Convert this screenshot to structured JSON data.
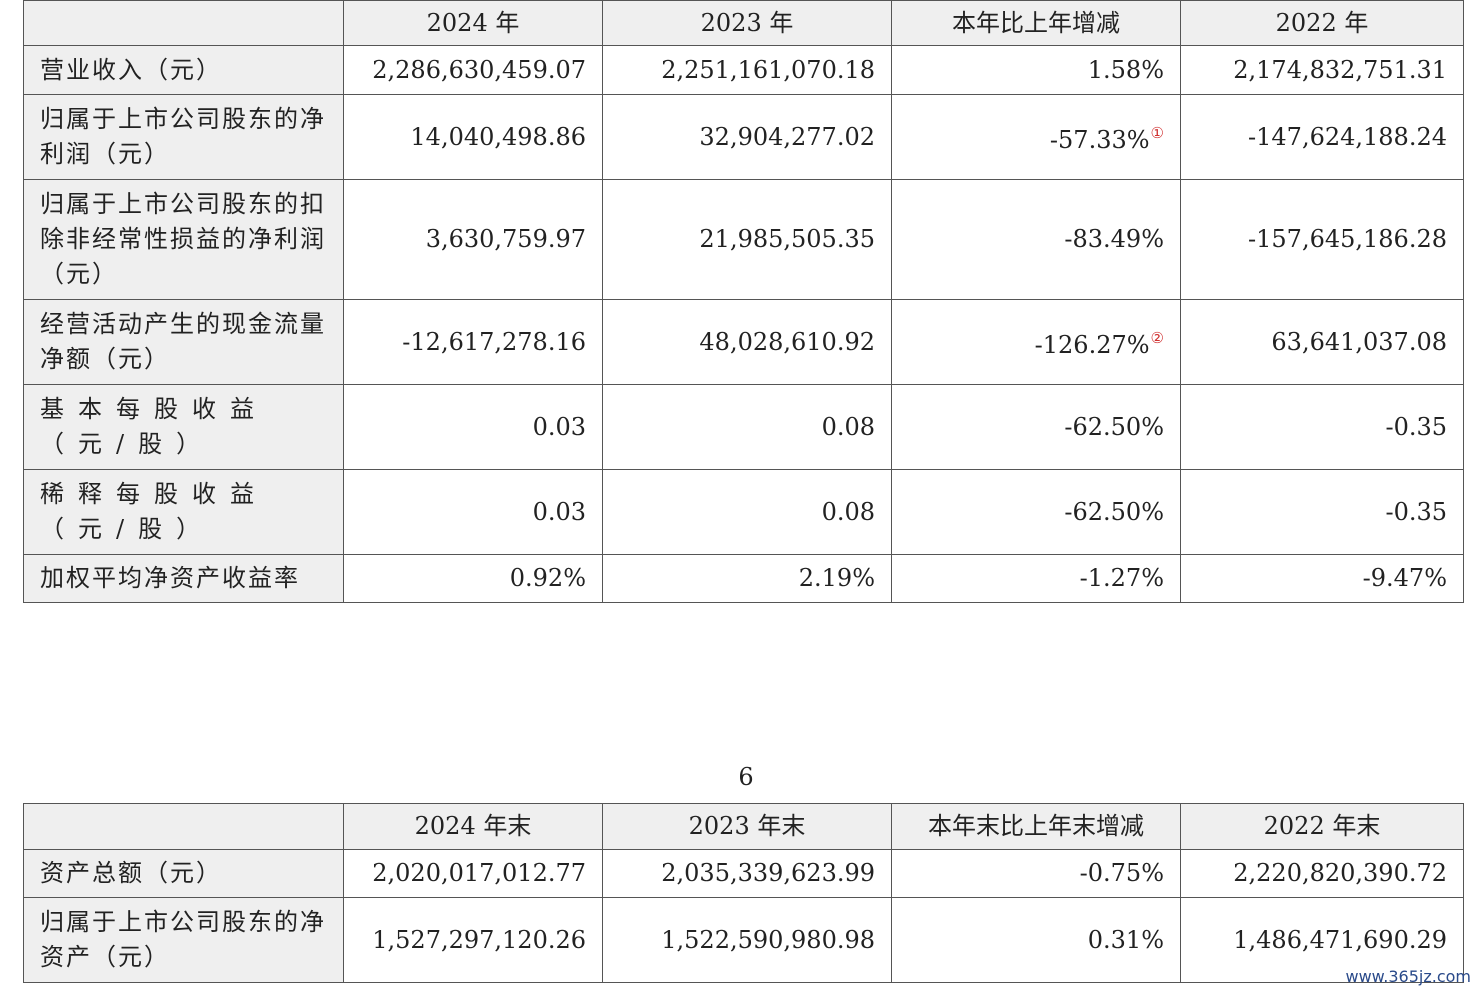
{
  "table1": {
    "headers": [
      "",
      "2024 年",
      "2023 年",
      "本年比上年增减",
      "2022 年"
    ],
    "rows": [
      {
        "label": "营业收入（元）",
        "v2024": "2,286,630,459.07",
        "v2023": "2,251,161,070.18",
        "change": "1.58%",
        "note": "",
        "v2022": "2,174,832,751.31"
      },
      {
        "label": "归属于上市公司股东的净利润（元）",
        "v2024": "14,040,498.86",
        "v2023": "32,904,277.02",
        "change": "-57.33%",
        "note": "①",
        "v2022": "-147,624,188.24"
      },
      {
        "label": "归属于上市公司股东的扣除非经常性损益的净利润（元）",
        "v2024": "3,630,759.97",
        "v2023": "21,985,505.35",
        "change": "-83.49%",
        "note": "",
        "v2022": "-157,645,186.28"
      },
      {
        "label": "经营活动产生的现金流量净额（元）",
        "v2024": "-12,617,278.16",
        "v2023": "48,028,610.92",
        "change": "-126.27%",
        "note": "②",
        "v2022": "63,641,037.08"
      },
      {
        "label": "基本每股收益（元/股）",
        "v2024": "0.03",
        "v2023": "0.08",
        "change": "-62.50%",
        "note": "",
        "v2022": "-0.35"
      },
      {
        "label": "稀释每股收益（元/股）",
        "v2024": "0.03",
        "v2023": "0.08",
        "change": "-62.50%",
        "note": "",
        "v2022": "-0.35"
      },
      {
        "label": "加权平均净资产收益率",
        "v2024": "0.92%",
        "v2023": "2.19%",
        "change": "-1.27%",
        "note": "",
        "v2022": "-9.47%"
      }
    ]
  },
  "page_number": "6",
  "table2": {
    "headers": [
      "",
      "2024 年末",
      "2023 年末",
      "本年末比上年末增减",
      "2022 年末"
    ],
    "rows": [
      {
        "label": "资产总额（元）",
        "v2024": "2,020,017,012.77",
        "v2023": "2,035,339,623.99",
        "change": "-0.75%",
        "v2022": "2,220,820,390.72"
      },
      {
        "label": "归属于上市公司股东的净资产（元）",
        "v2024": "1,527,297,120.26",
        "v2023": "1,522,590,980.98",
        "change": "0.31%",
        "v2022": "1,486,471,690.29"
      }
    ]
  },
  "watermark": "www.365jz.com"
}
